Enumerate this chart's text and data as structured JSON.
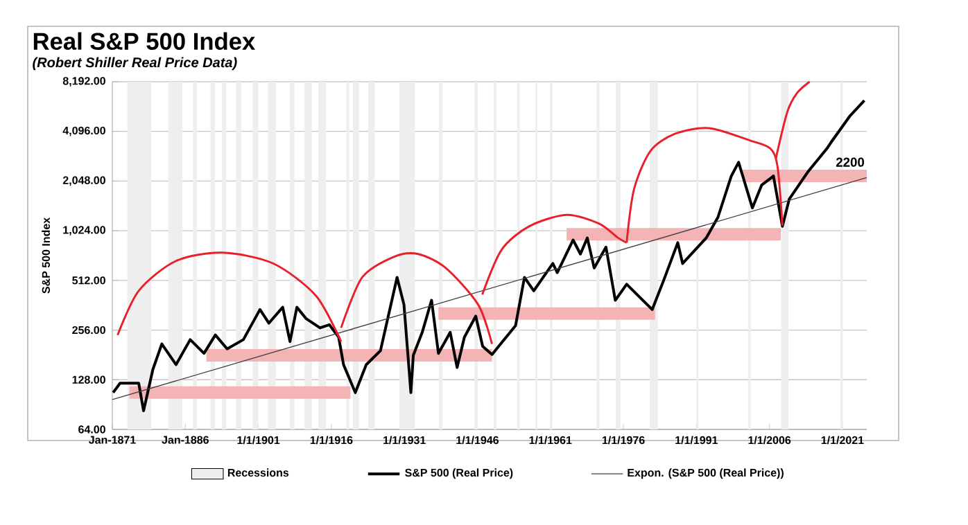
{
  "chart_data": {
    "type": "line",
    "title": "Real S&P 500 Index",
    "subtitle": "(Robert Shiller Real Price Data)",
    "ylabel": "S&P 500 Index",
    "log": "y",
    "grid": "y",
    "legend": "bottom",
    "xlim": [
      "1871-01",
      "2026-01"
    ],
    "xticks": [
      {
        "value": "1871-01",
        "label": "Jan-1871"
      },
      {
        "value": "1886-01",
        "label": "Jan-1886"
      },
      {
        "value": "1901-01",
        "label": "1/1/1901"
      },
      {
        "value": "1916-01",
        "label": "1/1/1916"
      },
      {
        "value": "1931-01",
        "label": "1/1/1931"
      },
      {
        "value": "1946-01",
        "label": "1/1/1946"
      },
      {
        "value": "1961-01",
        "label": "1/1/1961"
      },
      {
        "value": "1976-01",
        "label": "1/1/1976"
      },
      {
        "value": "1991-01",
        "label": "1/1/1991"
      },
      {
        "value": "2006-01",
        "label": "1/1/2006"
      },
      {
        "value": "2021-01",
        "label": "1/1/2021"
      }
    ],
    "ylim": [
      64,
      8192
    ],
    "yticks": [
      {
        "value": 64,
        "label": "64.00"
      },
      {
        "value": 128,
        "label": "128.00"
      },
      {
        "value": 256,
        "label": "256.00"
      },
      {
        "value": 512,
        "label": "512.00"
      },
      {
        "value": 1024,
        "label": "1,024.00"
      },
      {
        "value": 2048,
        "label": "2,048.00"
      },
      {
        "value": 4096,
        "label": "4,096.00"
      },
      {
        "value": 8192,
        "label": "8,192.00"
      }
    ],
    "bands": [
      {
        "axis": "x",
        "from": "1874-02",
        "to": "1879-01",
        "label": "Recessions",
        "color": "#eeeeee"
      },
      {
        "axis": "x",
        "from": "1882-07",
        "to": "1885-06",
        "color": "#eeeeee"
      },
      {
        "axis": "x",
        "from": "1887-08",
        "to": "1888-06",
        "color": "#eeeeee"
      },
      {
        "axis": "x",
        "from": "1891-03",
        "to": "1892-02",
        "color": "#eeeeee"
      },
      {
        "axis": "x",
        "from": "1893-07",
        "to": "1894-06",
        "color": "#eeeeee"
      },
      {
        "axis": "x",
        "from": "1896-06",
        "to": "1897-07",
        "color": "#eeeeee"
      },
      {
        "axis": "x",
        "from": "1899-11",
        "to": "1901-01",
        "color": "#eeeeee"
      },
      {
        "axis": "x",
        "from": "1903-01",
        "to": "1904-08",
        "color": "#eeeeee"
      },
      {
        "axis": "x",
        "from": "1907-07",
        "to": "1908-06",
        "color": "#eeeeee"
      },
      {
        "axis": "x",
        "from": "1910-07",
        "to": "1912-01",
        "color": "#eeeeee"
      },
      {
        "axis": "x",
        "from": "1913-05",
        "to": "1914-12",
        "color": "#eeeeee"
      },
      {
        "axis": "x",
        "from": "1919-02",
        "to": "1919-09",
        "color": "#eeeeee"
      },
      {
        "axis": "x",
        "from": "1920-06",
        "to": "1921-09",
        "color": "#eeeeee"
      },
      {
        "axis": "x",
        "from": "1923-08",
        "to": "1924-12",
        "color": "#eeeeee"
      },
      {
        "axis": "x",
        "from": "1930-01",
        "to": "1933-03",
        "color": "#eeeeee"
      },
      {
        "axis": "x",
        "from": "1938-02",
        "to": "1938-11",
        "color": "#eeeeee"
      },
      {
        "axis": "x",
        "from": "1945-06",
        "to": "1946-02",
        "color": "#eeeeee"
      },
      {
        "axis": "x",
        "from": "1949-05",
        "to": "1949-12",
        "color": "#eeeeee"
      },
      {
        "axis": "x",
        "from": "1954-03",
        "to": "1954-09",
        "color": "#eeeeee"
      },
      {
        "axis": "x",
        "from": "1957-12",
        "to": "1958-05",
        "color": "#eeeeee"
      },
      {
        "axis": "x",
        "from": "1960-12",
        "to": "1961-06",
        "color": "#eeeeee"
      },
      {
        "axis": "x",
        "from": "1970-07",
        "to": "1971-02",
        "color": "#eeeeee"
      },
      {
        "axis": "x",
        "from": "1974-06",
        "to": "1975-06",
        "color": "#eeeeee"
      },
      {
        "axis": "x",
        "from": "1981-06",
        "to": "1983-02",
        "color": "#eeeeee"
      },
      {
        "axis": "x",
        "from": "1991-01",
        "to": "1991-06",
        "color": "#eeeeee"
      },
      {
        "axis": "x",
        "from": "2001-09",
        "to": "2002-03",
        "color": "#eeeeee"
      },
      {
        "axis": "x",
        "from": "2008-06",
        "to": "2009-12",
        "color": "#eeeeee"
      },
      {
        "axis": "x",
        "from": "2020-08",
        "to": "2021-02",
        "color": "#eeeeee"
      }
    ],
    "series": [
      {
        "color": "#f4b4b6",
        "x": [
          "1874-07",
          "1919-12"
        ],
        "values": [
          107,
          107
        ]
      },
      {
        "color": "#f4b4b6",
        "x": [
          "1890-05",
          "1949-01"
        ],
        "values": [
          180,
          180
        ]
      },
      {
        "color": "#f4b4b6",
        "x": [
          "1938-01",
          "1982-07"
        ],
        "values": [
          322,
          322
        ]
      },
      {
        "color": "#f4b4b6",
        "x": [
          "1964-05",
          "2008-05"
        ],
        "values": [
          975,
          975
        ]
      },
      {
        "color": "#f4b4b6",
        "x": [
          "2000-07",
          "2026-01"
        ],
        "values": [
          2200,
          2200
        ]
      },
      {
        "name": "S&P 500 (Real Price)",
        "color": "#000000",
        "x": [
          "1871-03",
          "1872-08",
          "1876-06",
          "1877-06",
          "1879-05",
          "1881-03",
          "1884-02",
          "1887-01",
          "1889-11",
          "1892-03",
          "1894-08",
          "1897-12",
          "1901-05",
          "1903-03",
          "1906-01",
          "1907-07",
          "1908-12",
          "1910-11",
          "1913-09",
          "1915-08",
          "1917-07",
          "1918-07",
          "1920-12",
          "1923-03",
          "1926-02",
          "1929-07",
          "1930-12",
          "1932-05",
          "1932-11",
          "1934-09",
          "1936-08",
          "1938-01",
          "1940-06",
          "1941-11",
          "1943-05",
          "1945-09",
          "1947-02",
          "1949-01",
          "1953-11",
          "1955-09",
          "1957-08",
          "1961-07",
          "1962-06",
          "1965-09",
          "1967-03",
          "1968-08",
          "1970-01",
          "1972-06",
          "1974-05",
          "1976-09",
          "1980-01",
          "1981-12",
          "1984-05",
          "1987-03",
          "1988-03",
          "1993-01",
          "1995-06",
          "1998-03",
          "1999-09",
          "2002-07",
          "2004-06",
          "2006-11",
          "2008-09",
          "2010-02",
          "2014-01",
          "2017-11",
          "2018-08",
          "2022-08",
          "2025-07"
        ],
        "values": [
          107,
          122,
          122,
          83,
          148,
          211,
          158,
          224,
          185,
          239,
          197,
          224,
          341,
          282,
          352,
          218,
          352,
          300,
          264,
          276,
          232,
          158,
          107,
          158,
          192,
          534,
          365,
          107,
          180,
          248,
          388,
          185,
          248,
          152,
          232,
          311,
          204,
          182,
          272,
          534,
          443,
          648,
          571,
          900,
          740,
          925,
          609,
          815,
          388,
          485,
          388,
          341,
          518,
          867,
          648,
          925,
          1235,
          2196,
          2660,
          1408,
          1940,
          2196,
          1090,
          1595,
          2350,
          3230,
          3490,
          5100,
          6300
        ]
      },
      {
        "name": "Expon. (S&P 500 (Real Price))",
        "color": "#404040",
        "x": [
          "1871-01",
          "2026-01"
        ],
        "values": [
          97,
          2150
        ]
      },
      {
        "color": "#e8202a",
        "x": [
          "1872-02",
          "1876-06",
          "1884-02",
          "1893-08",
          "1904-02",
          "1912-11",
          "1918-01"
        ],
        "values": [
          239,
          443,
          672,
          754,
          648,
          413,
          218
        ]
      },
      {
        "color": "#e8202a",
        "x": [
          "1918-01",
          "1922-05",
          "1929-01",
          "1933-11",
          "1939-07",
          "1946-03",
          "1949-01"
        ],
        "values": [
          264,
          534,
          715,
          740,
          609,
          365,
          211
        ]
      },
      {
        "color": "#e8202a",
        "x": [
          "1947-01",
          "1951-01",
          "1956-09",
          "1964-05",
          "1971-01",
          "1974-11",
          "1976-09"
        ],
        "values": [
          420,
          787,
          1090,
          1278,
          1130,
          930,
          867
        ]
      },
      {
        "color": "#e8202a",
        "x": [
          "1976-09",
          "1978-03",
          "1981-07",
          "1986-07",
          "1993-08",
          "2002-01",
          "2006-03",
          "2007-09",
          "2008-09"
        ],
        "values": [
          867,
          1820,
          3100,
          3950,
          4290,
          3610,
          3230,
          2500,
          1100
        ]
      },
      {
        "color": "#e8202a",
        "x": [
          "2007-05",
          "2009-09",
          "2011-09",
          "2014-04"
        ],
        "values": [
          2820,
          5370,
          6990,
          8192
        ]
      }
    ],
    "annotations": [
      {
        "text": "2200",
        "x": "2026-01",
        "y": 2200
      }
    ]
  }
}
